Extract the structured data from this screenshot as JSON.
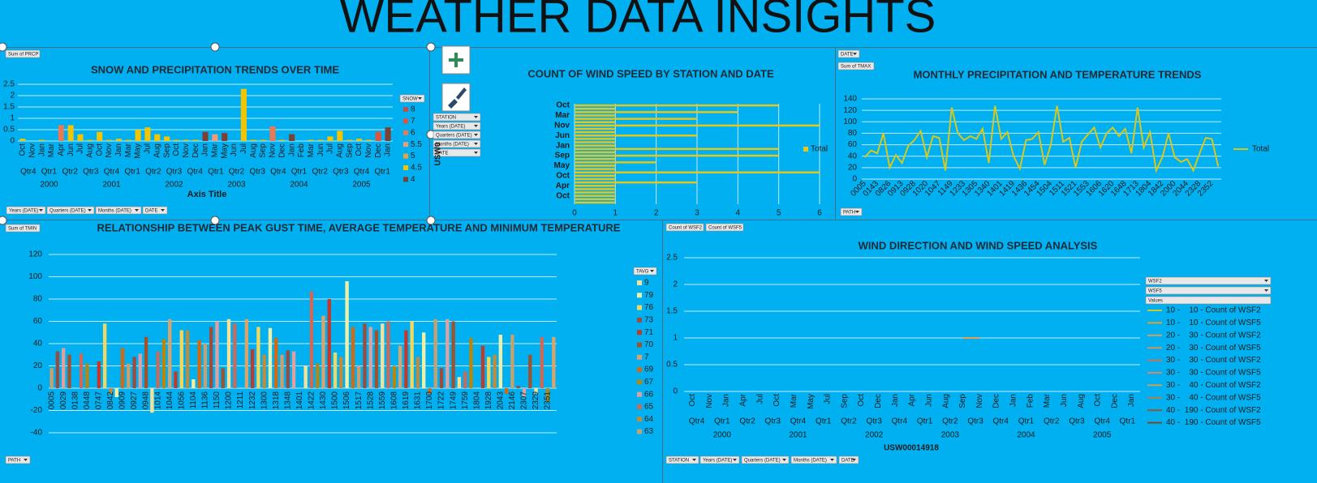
{
  "header": {
    "title": "WEATHER DATA INSIGHTS"
  },
  "chart_data": [
    {
      "type": "bar",
      "title": "SNOW AND PRECIPITATION TRENDS OVER TIME",
      "xlabel": "Axis Title",
      "categories": [
        "Oct",
        "Nov",
        "Jan",
        "Mar",
        "Apr",
        "Jun",
        "Jul",
        "Aug",
        "Oct",
        "Nov",
        "Jan",
        "Mar",
        "May",
        "Jul",
        "Aug",
        "Sep",
        "Oct",
        "Nov",
        "Dec",
        "Jan",
        "Mar",
        "May",
        "Jun",
        "Jul",
        "Aug",
        "Sep",
        "Nov",
        "Dec",
        "Jan",
        "Feb",
        "Mar",
        "Jun",
        "Jul",
        "Aug",
        "Sep",
        "Oct",
        "Nov",
        "Dec",
        "Jan"
      ],
      "quarters": [
        "Qtr4",
        "Qtr1",
        "Qtr2",
        "Qtr3",
        "Qtr4",
        "Qtr1",
        "Qtr2",
        "Qtr3",
        "Qtr4",
        "Qtr1",
        "Qtr2",
        "Qtr3",
        "Qtr4",
        "Qtr1",
        "Qtr2",
        "Qtr3",
        "Qtr4",
        "Qtr1"
      ],
      "years": [
        "2000",
        "2001",
        "2002",
        "2003",
        "2004",
        "2005"
      ],
      "values": [
        0.1,
        0,
        0.05,
        0,
        0.7,
        0.7,
        0.3,
        0.05,
        0.4,
        0.05,
        0.1,
        0.05,
        0.5,
        0.6,
        0.3,
        0.2,
        0.05,
        0.05,
        0.05,
        0.4,
        0.3,
        0.35,
        0,
        2.3,
        0.05,
        0.05,
        0.65,
        0.05,
        0.3,
        0,
        0.05,
        0.05,
        0.2,
        0.45,
        0.05,
        0.1,
        0.05,
        0.4,
        0.6
      ],
      "colors": [
        "#f2c500",
        "#f2c500",
        "#f2c500",
        "#f2c500",
        "#e87b54",
        "#f2c500",
        "#f2c500",
        "#f2c500",
        "#f2c500",
        "#f2c500",
        "#f2c500",
        "#f2c500",
        "#f2c500",
        "#f2c500",
        "#f2c500",
        "#f2c500",
        "#f2c500",
        "#f2c500",
        "#f2c500",
        "#7f3f32",
        "#f29a76",
        "#7f3f32",
        "#f2c500",
        "#f2c500",
        "#f2c500",
        "#f2c500",
        "#e87b54",
        "#f2c500",
        "#7f3f32",
        "#f2c500",
        "#f2c500",
        "#f2c500",
        "#f2c500",
        "#f2c500",
        "#f2c500",
        "#f2c500",
        "#f2c500",
        "#e0533d",
        "#7f3f32"
      ],
      "legend_title": "SNOW",
      "legend": [
        {
          "name": "8",
          "color": "#c0504d"
        },
        {
          "name": "7",
          "color": "#e0533d"
        },
        {
          "name": "6",
          "color": "#e87b54"
        },
        {
          "name": "5.5",
          "color": "#f29a76"
        },
        {
          "name": "5",
          "color": "#e9a33b"
        },
        {
          "name": "4.5",
          "color": "#f2c500"
        },
        {
          "name": "4",
          "color": "#7f3f32"
        }
      ],
      "ylim": [
        0,
        2.5
      ],
      "yticks": [
        0,
        0.5,
        1,
        1.5,
        2,
        2.5
      ],
      "grid": true,
      "buttons": [
        "Sum of PRCP",
        "Years (DATE)",
        "Quarters (DATE)",
        "Months (DATE)",
        "DATE"
      ]
    },
    {
      "type": "bar",
      "orientation": "horizontal",
      "title": "COUNT OF WIND SPEED BY STATION AND DATE",
      "station": "USW0",
      "categories": [
        "Oct",
        null,
        null,
        "Mar",
        null,
        null,
        "Nov",
        null,
        null,
        "Jun",
        null,
        null,
        "Jan",
        null,
        null,
        "Sep",
        null,
        null,
        "May",
        null,
        null,
        "Oct",
        null,
        null,
        "Apr",
        null,
        null,
        "Oct",
        null,
        null
      ],
      "series": [
        {
          "name": "Total",
          "color": "#e6c619",
          "values": [
            5,
            1,
            4,
            1,
            3,
            1,
            6,
            1,
            1,
            3,
            1,
            1,
            1,
            5,
            1,
            5,
            1,
            2,
            1,
            1,
            6,
            1,
            1,
            3,
            1,
            1,
            1,
            1,
            1,
            1
          ]
        }
      ],
      "xlim": [
        0,
        6
      ],
      "xticks": [
        0,
        1,
        2,
        3,
        4,
        5,
        6
      ],
      "grid": true,
      "buttons": [
        "STATION",
        "Years (DATE)",
        "Quarters (DATE)",
        "Months (DATE)",
        "DATE"
      ]
    },
    {
      "type": "line",
      "title": "MONTHLY PRECIPITATION AND TEMPERATURE TRENDS",
      "categories": [
        "0005",
        null,
        "0143",
        null,
        "0826",
        null,
        "0913",
        null,
        "0928",
        null,
        "1020",
        null,
        "1047",
        null,
        "1149",
        null,
        "1233",
        null,
        "1305",
        null,
        "1340",
        null,
        "1401",
        null,
        "1419",
        null,
        "1436",
        null,
        "1454",
        null,
        "1504",
        null,
        "1511",
        null,
        "1521",
        null,
        "1553",
        null,
        "1606",
        null,
        "1620",
        null,
        "1648",
        null,
        "1713",
        null,
        "1804",
        null,
        "1842",
        null,
        "2000",
        null,
        "2044",
        null,
        "2328",
        null,
        "2352",
        null
      ],
      "series": [
        {
          "name": "Total",
          "color": "#d8c81e",
          "values": [
            38,
            50,
            45,
            80,
            20,
            42,
            28,
            58,
            68,
            84,
            38,
            75,
            72,
            15,
            125,
            80,
            68,
            75,
            70,
            88,
            28,
            128,
            70,
            82,
            40,
            18,
            68,
            70,
            82,
            25,
            60,
            128,
            65,
            72,
            20,
            65,
            78,
            90,
            55,
            80,
            90,
            75,
            88,
            45,
            125,
            55,
            82,
            15,
            38,
            80,
            38,
            30,
            35,
            15,
            45,
            72,
            70,
            22
          ]
        }
      ],
      "ylim": [
        0,
        140
      ],
      "yticks": [
        0,
        20,
        40,
        60,
        80,
        100,
        120,
        140
      ],
      "grid": true,
      "buttons": [
        "DATE",
        "Sum of TMAX",
        "PATH"
      ]
    },
    {
      "type": "bar",
      "title": "RELATIONSHIP BETWEEN PEAK GUST TIME, AVERAGE TEMPERATURE AND MINIMUM TEMPERATURE",
      "categories": [
        "0005",
        null,
        "0029",
        null,
        "0138",
        null,
        "0448",
        null,
        "0747",
        null,
        "0842",
        null,
        "0909",
        null,
        "0927",
        null,
        "0948",
        null,
        "1014",
        null,
        "1044",
        null,
        "1056",
        null,
        "1104",
        null,
        "1136",
        null,
        "1150",
        null,
        "1200",
        null,
        "1211",
        null,
        "1232",
        null,
        "1300",
        null,
        "1318",
        null,
        "1348",
        null,
        "1401",
        null,
        "1422",
        null,
        "1430",
        null,
        "1500",
        null,
        "1506",
        null,
        "1517",
        null,
        "1528",
        null,
        "1559",
        null,
        "1608",
        null,
        "1619",
        null,
        "1631",
        null,
        "1700",
        null,
        "1722",
        null,
        "1749",
        null,
        "1759",
        null,
        "1804",
        null,
        "1928",
        null,
        "2043",
        null,
        "2146",
        null,
        "2307",
        null,
        "2329",
        null,
        "2351",
        null
      ],
      "values": [
        18,
        33,
        36,
        30,
        0,
        31,
        22,
        0,
        24,
        58,
        -5,
        -8,
        36,
        22,
        28,
        31,
        46,
        -22,
        33,
        44,
        62,
        15,
        52,
        52,
        8,
        43,
        40,
        55,
        60,
        18,
        62,
        58,
        0,
        62,
        35,
        55,
        30,
        54,
        45,
        30,
        34,
        33,
        0,
        20,
        87,
        22,
        65,
        80,
        32,
        28,
        96,
        55,
        20,
        58,
        55,
        52,
        58,
        60,
        20,
        38,
        52,
        60,
        28,
        50,
        -5,
        62,
        18,
        62,
        60,
        10,
        15,
        45,
        0,
        38,
        28,
        30,
        48,
        -5,
        48,
        2,
        -8,
        30,
        -5,
        46,
        -12,
        46
      ],
      "colors": [
        "#c8a070",
        "#9c4b3c",
        "#e0a0a0",
        "#a0522d",
        "#f4e29a",
        "#c96a5b",
        "#b8860b",
        "#d9a46c",
        "#c0392b",
        "#f0d860",
        "#c28b3c",
        "#eef0a8",
        "#d4690f",
        "#c8a070",
        "#9c4b3c",
        "#e0a0a0",
        "#a0522d",
        "#f4e29a",
        "#c96a5b",
        "#b8860b",
        "#d9a46c",
        "#c0392b",
        "#f0d860",
        "#c28b3c",
        "#eef0a8",
        "#d4690f",
        "#c8a070",
        "#9c4b3c",
        "#e0a0a0",
        "#a0522d",
        "#f4e29a",
        "#c96a5b",
        "#b8860b",
        "#d9a46c",
        "#c0392b",
        "#f0d860",
        "#c28b3c",
        "#eef0a8",
        "#d4690f",
        "#c8a070",
        "#9c4b3c",
        "#e0a0a0",
        "#a0522d",
        "#f4e29a",
        "#c96a5b",
        "#b8860b",
        "#d9a46c",
        "#c0392b",
        "#f0d860",
        "#c28b3c",
        "#eef0a8",
        "#d4690f",
        "#c8a070",
        "#9c4b3c",
        "#e0a0a0",
        "#a0522d",
        "#f4e29a",
        "#c96a5b",
        "#b8860b",
        "#d9a46c",
        "#c0392b",
        "#f0d860",
        "#c28b3c",
        "#eef0a8",
        "#d4690f",
        "#c8a070",
        "#9c4b3c",
        "#e0a0a0",
        "#a0522d",
        "#f4e29a",
        "#c96a5b",
        "#b8860b",
        "#d9a46c",
        "#c0392b",
        "#f0d860",
        "#c28b3c",
        "#eef0a8",
        "#d4690f",
        "#c8a070",
        "#9c4b3c",
        "#e0a0a0",
        "#a0522d",
        "#f4e29a",
        "#c96a5b",
        "#b8860b",
        "#d9a46c"
      ],
      "legend_title": "TAVG",
      "legend": [
        {
          "name": "9",
          "color": "#f4e29a"
        },
        {
          "name": "79",
          "color": "#eef0a8"
        },
        {
          "name": "76",
          "color": "#f0d860"
        },
        {
          "name": "73",
          "color": "#9c4b3c"
        },
        {
          "name": "71",
          "color": "#c0392b"
        },
        {
          "name": "70",
          "color": "#a0522d"
        },
        {
          "name": "7",
          "color": "#d9a46c"
        },
        {
          "name": "69",
          "color": "#d4690f"
        },
        {
          "name": "67",
          "color": "#b8860b"
        },
        {
          "name": "66",
          "color": "#e0a0a0"
        },
        {
          "name": "65",
          "color": "#c96a5b"
        },
        {
          "name": "64",
          "color": "#c28b3c"
        },
        {
          "name": "63",
          "color": "#c8a070"
        }
      ],
      "ylim": [
        -40,
        120
      ],
      "yticks": [
        -40,
        -20,
        0,
        20,
        40,
        60,
        80,
        100,
        120
      ],
      "grid": true,
      "buttons": [
        "Sum of TMIN",
        "PATH"
      ]
    },
    {
      "type": "line",
      "title": "WIND DIRECTION AND WIND SPEED ANALYSIS",
      "station": "USW00014918",
      "categories": [
        "Oct",
        "Nov",
        "Jan",
        "Apr",
        "Jul",
        "Oct",
        "Mar",
        "May",
        "Jul",
        "Sep",
        "Oct",
        "Dec",
        "Jan",
        "Apr",
        "Jun",
        "Aug",
        "Sep",
        "Nov",
        "Dec",
        "Jan",
        "Feb",
        "Mar",
        "Jun",
        "Aug",
        "Oct",
        "Dec",
        "Jan"
      ],
      "quarters": [
        "Qtr4",
        "Qtr1",
        "Qtr2",
        "Qtr3",
        "Qtr4",
        "Qtr1",
        "Qtr2",
        "Qtr3",
        "Qtr4",
        "Qtr1",
        "Qtr2",
        "Qtr3",
        "Qtr4",
        "Qtr1",
        "Qtr2",
        "Qtr3",
        "Qtr4",
        "Qtr1"
      ],
      "years": [
        "2000",
        "2001",
        "2002",
        "2003",
        "2004",
        "2005"
      ],
      "values": [
        null,
        null,
        null,
        null,
        null,
        null,
        null,
        null,
        null,
        null,
        null,
        null,
        null,
        null,
        null,
        null,
        1,
        1,
        null,
        null,
        null,
        null,
        null,
        null,
        null,
        null,
        null
      ],
      "color": "#e8a04a",
      "legend": [
        {
          "name": "10 -    10 - Count of WSF2",
          "color": "#c9c92a"
        },
        {
          "name": "10 -    10 - Count of WSF5",
          "color": "#e0a030"
        },
        {
          "name": "20 -    30 - Count of WSF2",
          "color": "#d4a060"
        },
        {
          "name": "20 -    30 - Count of WSF5",
          "color": "#d9905a"
        },
        {
          "name": "30 -    30 - Count of WSF2",
          "color": "#d07050"
        },
        {
          "name": "30 -    30 - Count of WSF5",
          "color": "#e08070"
        },
        {
          "name": "30 -    40 - Count of WSF2",
          "color": "#c8a060"
        },
        {
          "name": "30 -    40 - Count of WSF5",
          "color": "#b08050"
        },
        {
          "name": "40 -  190 - Count of WSF2",
          "color": "#8b5a3c"
        },
        {
          "name": "40 -  190 - Count of WSF5",
          "color": "#7a4a30"
        }
      ],
      "ylim": [
        0,
        2.5
      ],
      "yticks": [
        0,
        0.5,
        1,
        1.5,
        2,
        2.5
      ],
      "grid": true,
      "buttons": [
        "Count of WSF2",
        "Count of WSF5",
        "WSF2",
        "WSF5",
        "Values",
        "STATION",
        "Years (DATE)",
        "Quarters (DATE)",
        "Months (DATE)",
        "DATE"
      ]
    }
  ]
}
